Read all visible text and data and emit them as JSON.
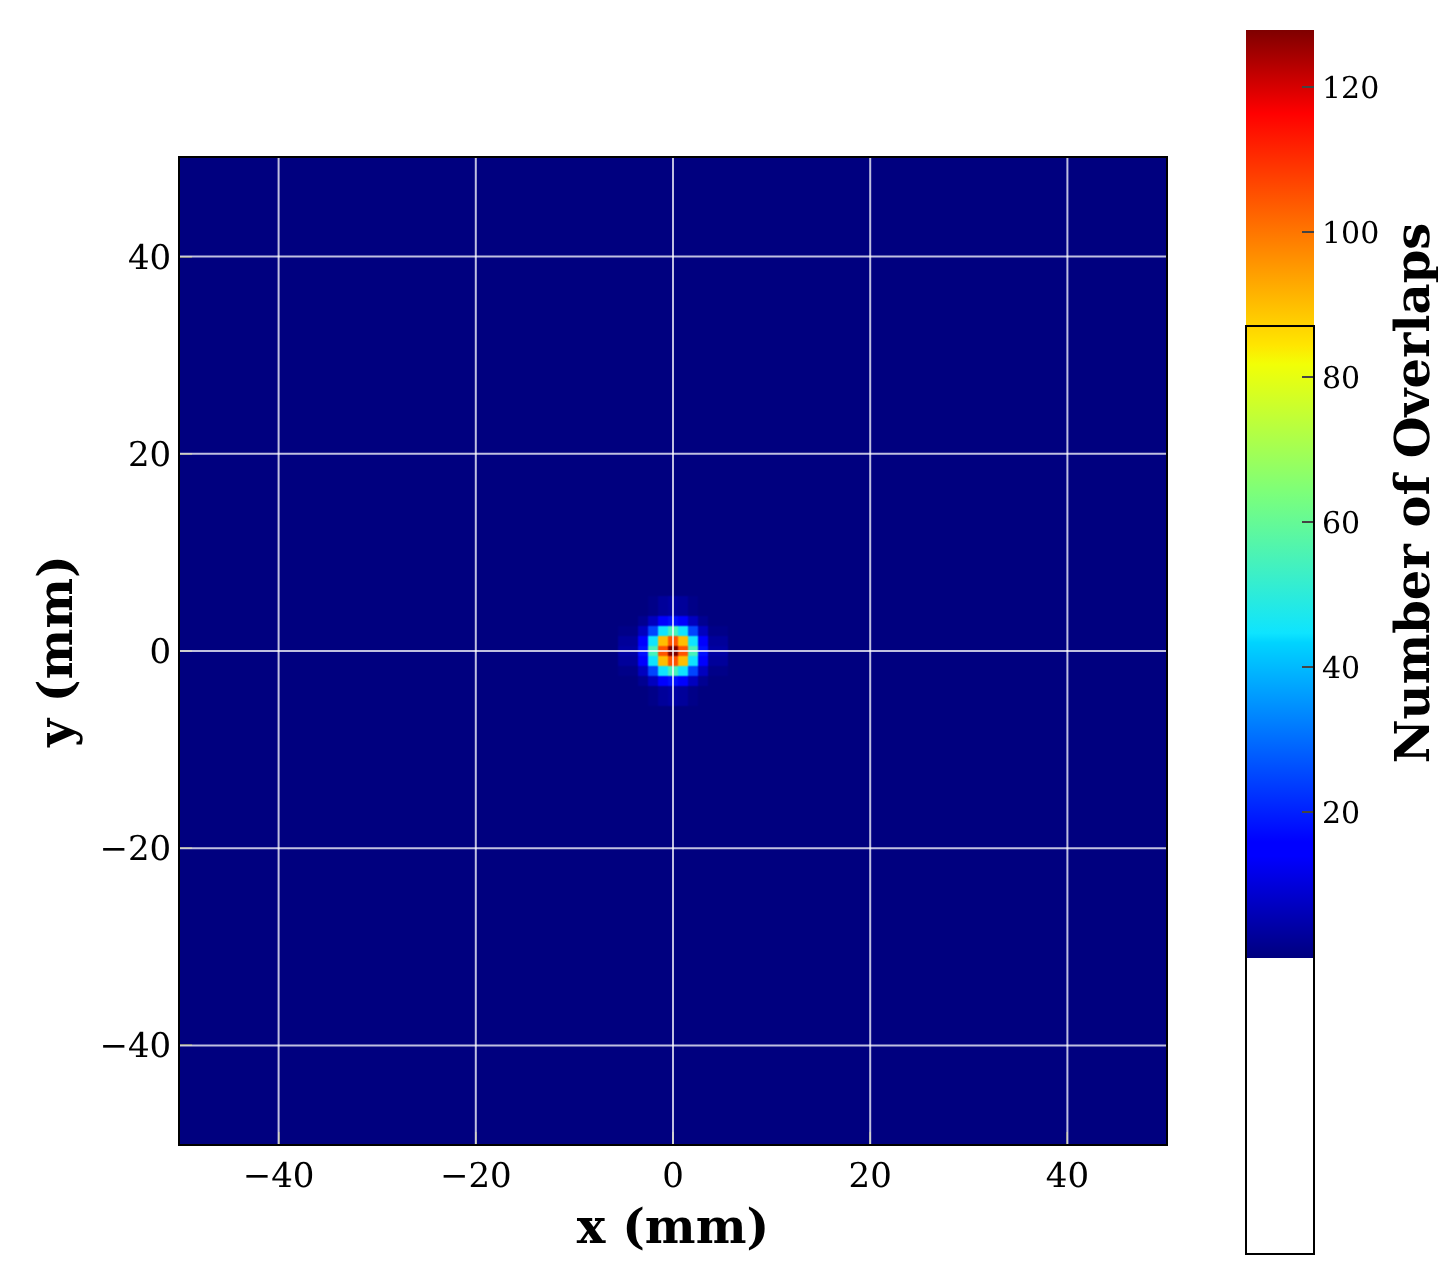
{
  "chart_data": {
    "type": "heatmap",
    "xlabel": "x (mm)",
    "ylabel": "y (mm)",
    "clabel": "Number of Overlaps",
    "x": [
      -40,
      -20,
      -7,
      -4,
      -3,
      -2,
      -1,
      0,
      1,
      2,
      3,
      4,
      7,
      20,
      40
    ],
    "y": [
      40,
      20,
      7,
      4,
      3,
      2,
      1,
      0,
      -1,
      -2,
      -3,
      -4,
      -7,
      -20,
      -40
    ],
    "cells": [
      [
        0,
        0,
        0,
        0,
        0,
        0,
        0,
        0,
        0,
        0,
        0,
        0,
        0,
        0,
        0
      ],
      [
        0,
        0,
        0,
        0,
        0,
        0,
        0,
        0,
        0,
        0,
        0,
        0,
        0,
        0,
        0
      ],
      [
        0,
        0,
        0,
        0,
        0,
        0,
        0,
        0,
        0,
        0,
        0,
        0,
        0,
        0,
        0
      ],
      [
        0,
        0,
        0,
        0,
        0,
        1,
        3,
        4,
        3,
        1,
        0,
        0,
        0,
        0,
        0
      ],
      [
        0,
        0,
        0,
        0,
        2,
        7,
        14,
        18,
        14,
        7,
        2,
        0,
        0,
        0,
        0
      ],
      [
        0,
        0,
        0,
        1,
        7,
        25,
        45,
        55,
        45,
        25,
        7,
        1,
        0,
        0,
        0
      ],
      [
        0,
        0,
        0,
        3,
        14,
        45,
        90,
        105,
        90,
        45,
        14,
        3,
        0,
        0,
        0
      ],
      [
        0,
        0,
        0,
        4,
        18,
        55,
        105,
        128,
        105,
        55,
        18,
        4,
        0,
        0,
        0
      ],
      [
        0,
        0,
        0,
        3,
        14,
        45,
        90,
        105,
        90,
        45,
        14,
        3,
        0,
        0,
        0
      ],
      [
        0,
        0,
        0,
        1,
        7,
        25,
        45,
        55,
        45,
        25,
        7,
        1,
        0,
        0,
        0
      ],
      [
        0,
        0,
        0,
        0,
        2,
        7,
        14,
        18,
        14,
        7,
        2,
        0,
        0,
        0,
        0
      ],
      [
        0,
        0,
        0,
        0,
        0,
        1,
        3,
        4,
        3,
        1,
        0,
        0,
        0,
        0,
        0
      ],
      [
        0,
        0,
        0,
        0,
        0,
        0,
        0,
        0,
        0,
        0,
        0,
        0,
        0,
        0,
        0
      ],
      [
        0,
        0,
        0,
        0,
        0,
        0,
        0,
        0,
        0,
        0,
        0,
        0,
        0,
        0,
        0
      ],
      [
        0,
        0,
        0,
        0,
        0,
        0,
        0,
        0,
        0,
        0,
        0,
        0,
        0,
        0,
        0
      ]
    ],
    "clim": [
      0,
      128
    ],
    "cticks": [
      20,
      40,
      60,
      80,
      100,
      120
    ],
    "xlim": [
      -50,
      50
    ],
    "ylim": [
      -50,
      50
    ],
    "xticks": [
      {
        "value": -40,
        "label": "−40"
      },
      {
        "value": -20,
        "label": "−20"
      },
      0,
      20,
      40
    ],
    "yticks": [
      {
        "value": -40,
        "label": "−40"
      },
      {
        "value": -20,
        "label": "−20"
      },
      0,
      20,
      40
    ],
    "grid": true
  }
}
